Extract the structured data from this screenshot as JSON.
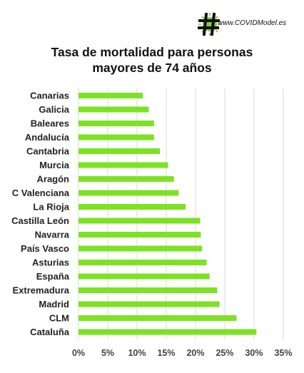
{
  "logo": {
    "text": "www.COVIDModel.es",
    "icon": "hashtag-virus-icon",
    "color": "#6fbf2c"
  },
  "chart_data": {
    "type": "bar",
    "orientation": "horizontal",
    "title_lines": [
      "Tasa de mortalidad para personas",
      "mayores de 74 años"
    ],
    "categories": [
      "Canarias",
      "Galicia",
      "Baleares",
      "Andalucía",
      "Cantabria",
      "Murcia",
      "Aragón",
      "C Valenciana",
      "La Rioja",
      "Castilla León",
      "Navarra",
      "País Vasco",
      "Asturias",
      "España",
      "Extremadura",
      "Madrid",
      "CLM",
      "Cataluña"
    ],
    "values": [
      0.11,
      0.12,
      0.129,
      0.129,
      0.139,
      0.153,
      0.163,
      0.171,
      0.183,
      0.208,
      0.209,
      0.211,
      0.219,
      0.224,
      0.237,
      0.241,
      0.27,
      0.304
    ],
    "xlim": [
      0,
      0.35
    ],
    "ticks": [
      0,
      0.05,
      0.1,
      0.15,
      0.2,
      0.25,
      0.3,
      0.35
    ],
    "tick_labels": [
      "0%",
      "5%",
      "10%",
      "15%",
      "20%",
      "25%",
      "30%",
      "35%"
    ],
    "grid": true,
    "bar_color": "#7ee224",
    "grid_color": "#d9d9d9"
  }
}
